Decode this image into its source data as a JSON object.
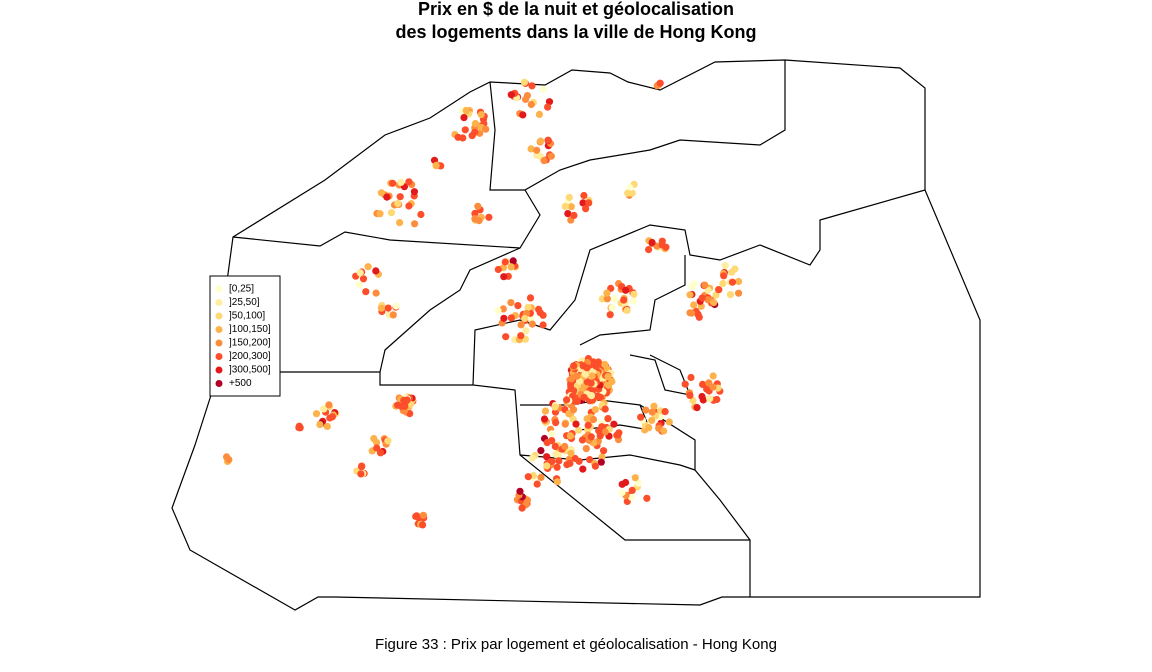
{
  "title": [
    "Prix  en $ de la nuit et géolocalisation",
    "des logements dans la ville de Hong Kong"
  ],
  "legend": {
    "entries": [
      {
        "label": "[0,25]",
        "color": "#ffffcc"
      },
      {
        "label": "]25,50]",
        "color": "#ffeda0"
      },
      {
        "label": "]50,100]",
        "color": "#fed976"
      },
      {
        "label": "]100,150]",
        "color": "#feb24c"
      },
      {
        "label": "]150,200]",
        "color": "#fd8d3c"
      },
      {
        "label": "]200,300]",
        "color": "#fc4e2a"
      },
      {
        "label": "]300,500]",
        "color": "#e31a1c"
      },
      {
        "label": "+500",
        "color": "#b10026"
      }
    ]
  },
  "caption": "Figure 33 : Prix par logement et géolocalisation - Hong Kong"
}
